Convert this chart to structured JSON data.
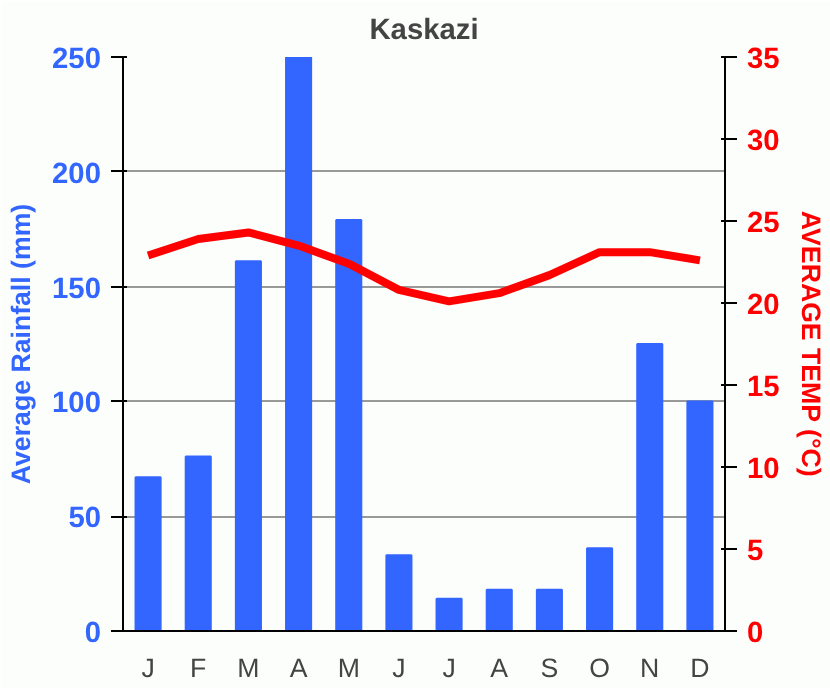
{
  "chart_data": {
    "type": "bar",
    "title": "Kaskazi",
    "ylabel": "Average Rainfall (mm)",
    "y2label": "AVERAGE TEMP (°C)",
    "categories": [
      "J",
      "F",
      "M",
      "A",
      "M",
      "J",
      "J",
      "A",
      "S",
      "O",
      "N",
      "D"
    ],
    "series": [
      {
        "color": "#3366ff",
        "values": [
          67,
          76,
          161,
          250,
          179,
          33,
          14,
          18,
          18,
          36,
          125,
          100
        ]
      },
      {
        "type": "line",
        "axis": "y2",
        "color": "#ff0000",
        "values": [
          22.9,
          23.9,
          24.3,
          23.5,
          22.4,
          20.8,
          20.1,
          20.6,
          21.7,
          23.1,
          23.1,
          22.6
        ]
      }
    ],
    "ylim": [
      0,
      250
    ],
    "yticks": [
      0,
      50,
      100,
      150,
      200,
      250
    ],
    "y2lim": [
      0,
      35
    ],
    "y2ticks": [
      0,
      5,
      10,
      15,
      20,
      25,
      30,
      35
    ],
    "grid": "y",
    "marker": "none",
    "line_style": "solid"
  }
}
